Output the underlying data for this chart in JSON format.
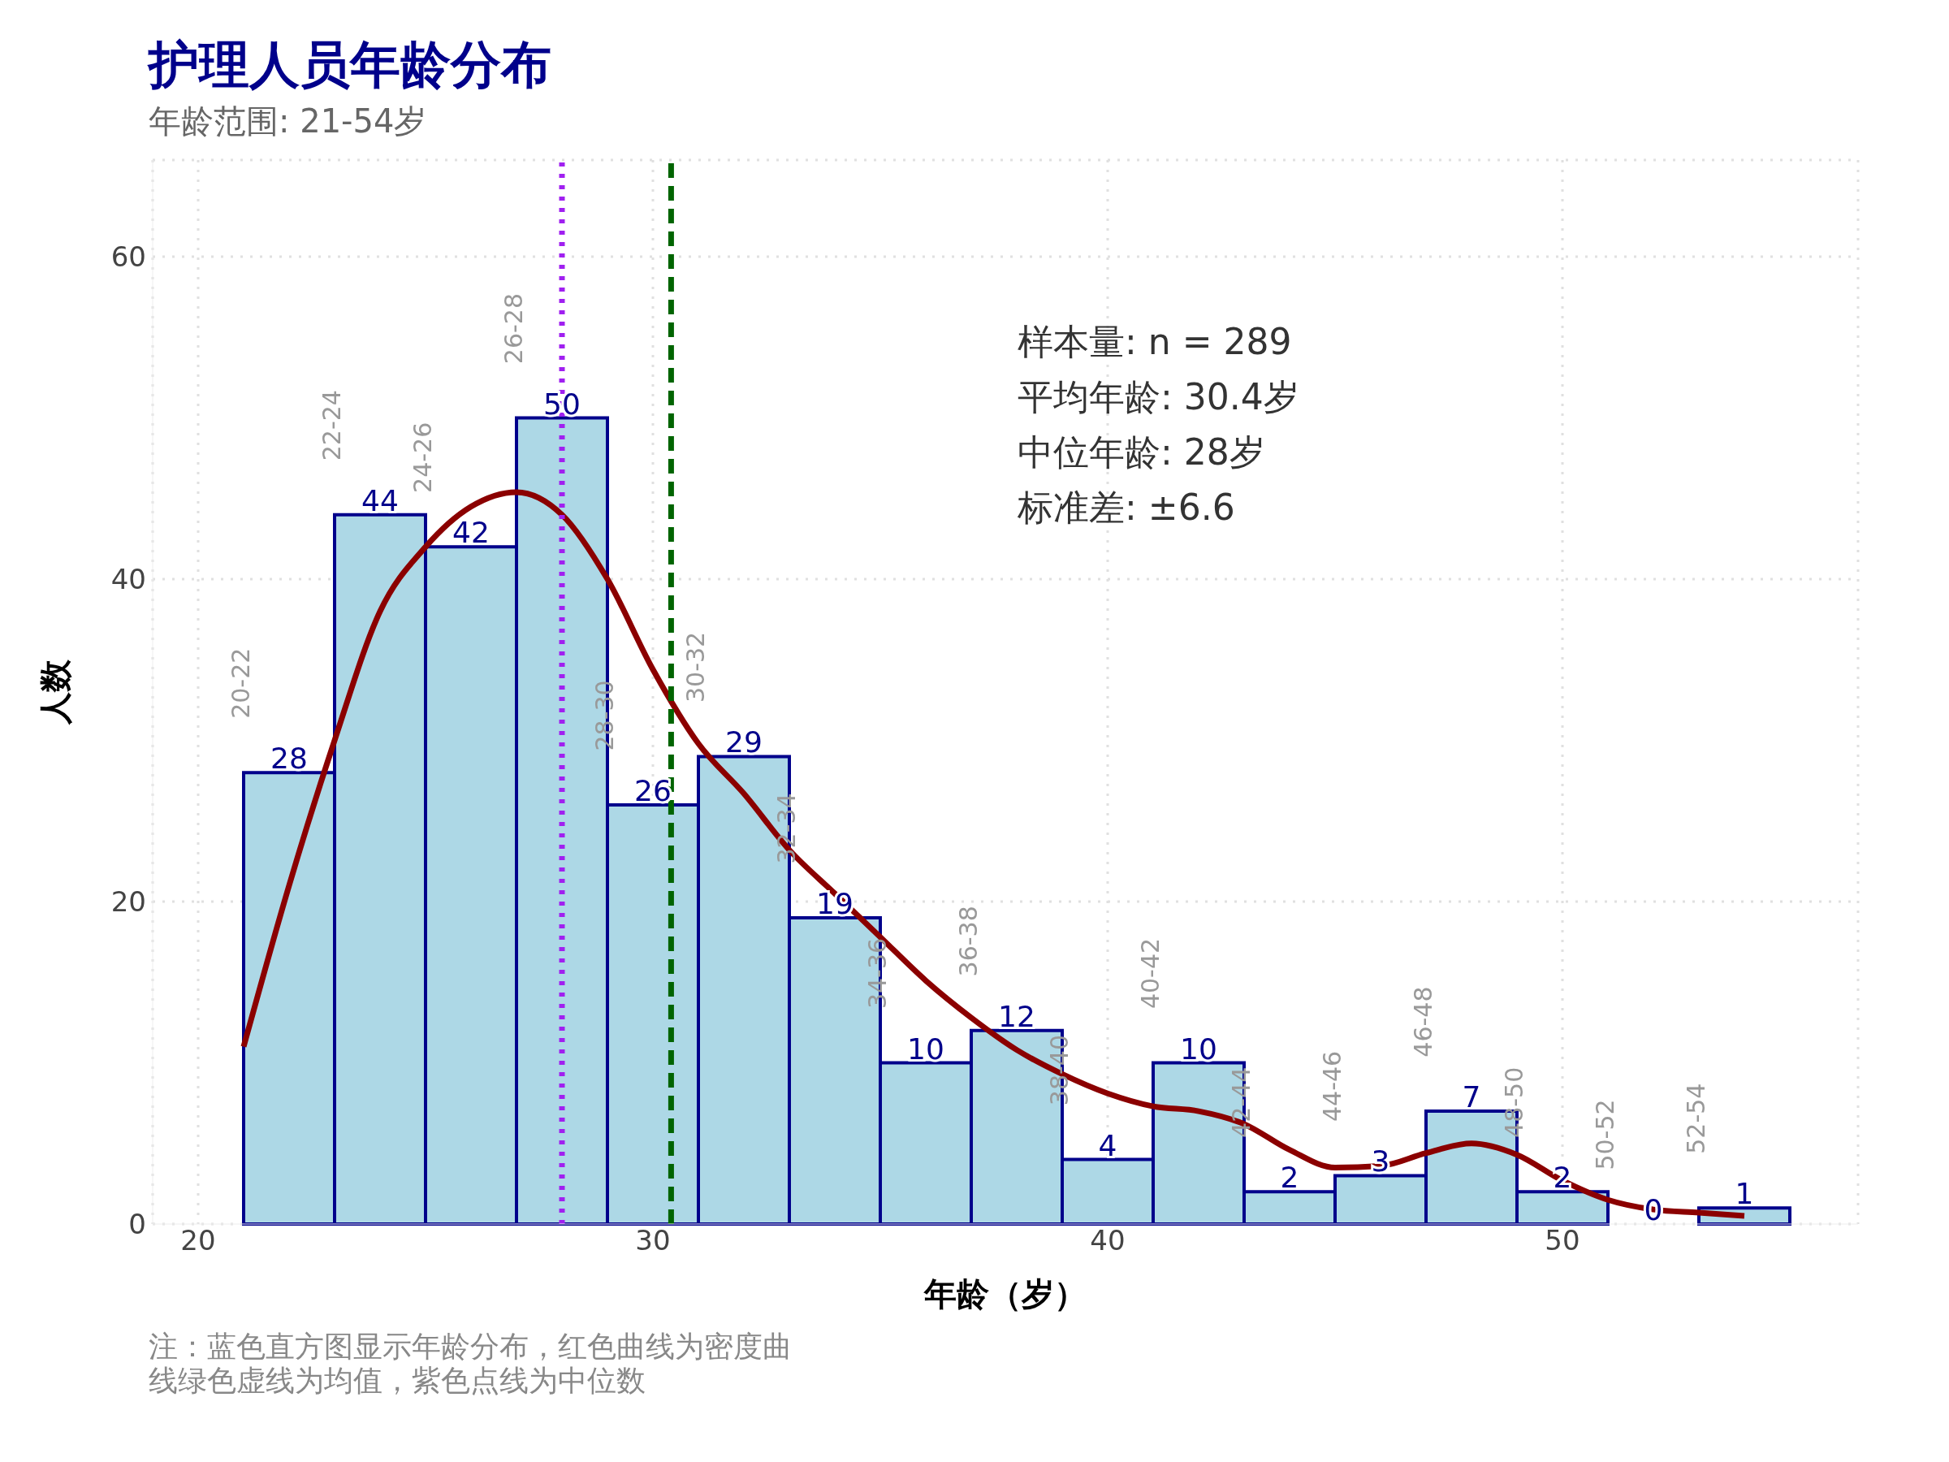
{
  "chart_data": {
    "type": "histogram",
    "title": "护理人员年龄分布",
    "subtitle": "年龄范围: 21-54岁",
    "xlabel": "年龄（岁）",
    "ylabel": "人数",
    "bins": [
      21,
      23,
      25,
      27,
      29,
      31,
      33,
      35,
      37,
      39,
      41,
      43,
      45,
      47,
      49,
      51,
      53,
      55
    ],
    "values": [
      28,
      44,
      42,
      50,
      26,
      29,
      19,
      10,
      12,
      4,
      10,
      2,
      3,
      7,
      2,
      0,
      1
    ],
    "value_labels": [
      "28",
      "44",
      "42",
      "50",
      "26",
      "29",
      "19",
      "10",
      "12",
      "4",
      "10",
      "2",
      "3",
      "7",
      "2",
      "0",
      "1"
    ],
    "color": "#add8e6",
    "series": [
      {
        "type": "line",
        "color": "#8b0000",
        "x": [
          21,
          22,
          23,
          24,
          25,
          26,
          27,
          28,
          29,
          30,
          31,
          32,
          33,
          34,
          35,
          36,
          37,
          38,
          39,
          40,
          41,
          42,
          43,
          44,
          45,
          46,
          47,
          48,
          49,
          50,
          51,
          52,
          53,
          54
        ],
        "values": [
          11,
          21,
          30,
          38,
          42,
          44.5,
          45.4,
          44,
          40,
          34.4,
          29.8,
          26.7,
          23.2,
          20.5,
          17.8,
          15.1,
          12.8,
          10.8,
          9.3,
          8.1,
          7.3,
          7,
          6.2,
          4.6,
          3.5,
          3.6,
          4.4,
          5,
          4.3,
          2.7,
          1.5,
          0.9,
          0.7,
          0.5
        ]
      }
    ],
    "ref_lines": [
      {
        "axis": "x",
        "value": 30.4,
        "color": "#006400",
        "line_style": "dashed"
      },
      {
        "axis": "x",
        "value": 28,
        "color": "#a020f0",
        "line_style": "dotted"
      }
    ],
    "xlim": [
      19,
      56.5
    ],
    "xticks": [
      20,
      30,
      40,
      50
    ],
    "ylim": [
      0,
      66
    ],
    "yticks": [
      0,
      20,
      40,
      60
    ],
    "grid": true,
    "annotations": [
      {
        "text": "20-22",
        "x": 21,
        "y": 28
      },
      {
        "text": "22-24",
        "x": 23,
        "y": 44
      },
      {
        "text": "24-26",
        "x": 25,
        "y": 42
      },
      {
        "text": "26-28",
        "x": 27,
        "y": 50
      },
      {
        "text": "28-30",
        "x": 29,
        "y": 26
      },
      {
        "text": "30-32",
        "x": 31,
        "y": 29
      },
      {
        "text": "32-34",
        "x": 33,
        "y": 19
      },
      {
        "text": "34-36",
        "x": 35,
        "y": 10
      },
      {
        "text": "36-38",
        "x": 37,
        "y": 12
      },
      {
        "text": "38-40",
        "x": 39,
        "y": 4
      },
      {
        "text": "40-42",
        "x": 41,
        "y": 10
      },
      {
        "text": "42-44",
        "x": 43,
        "y": 2
      },
      {
        "text": "44-46",
        "x": 45,
        "y": 3
      },
      {
        "text": "46-48",
        "x": 47,
        "y": 7
      },
      {
        "text": "48-50",
        "x": 49,
        "y": 2
      },
      {
        "text": "50-52",
        "x": 51,
        "y": 0
      },
      {
        "text": "52-54",
        "x": 53,
        "y": 1
      },
      "样本量: n = 289",
      "平均年龄: 30.4岁",
      "中位年龄: 28岁",
      "标准差: ±6.6",
      "注：蓝色直方图显示年龄分布，红色曲线为密度曲线绿色虚线为均值，紫色点线为中位数"
    ]
  }
}
